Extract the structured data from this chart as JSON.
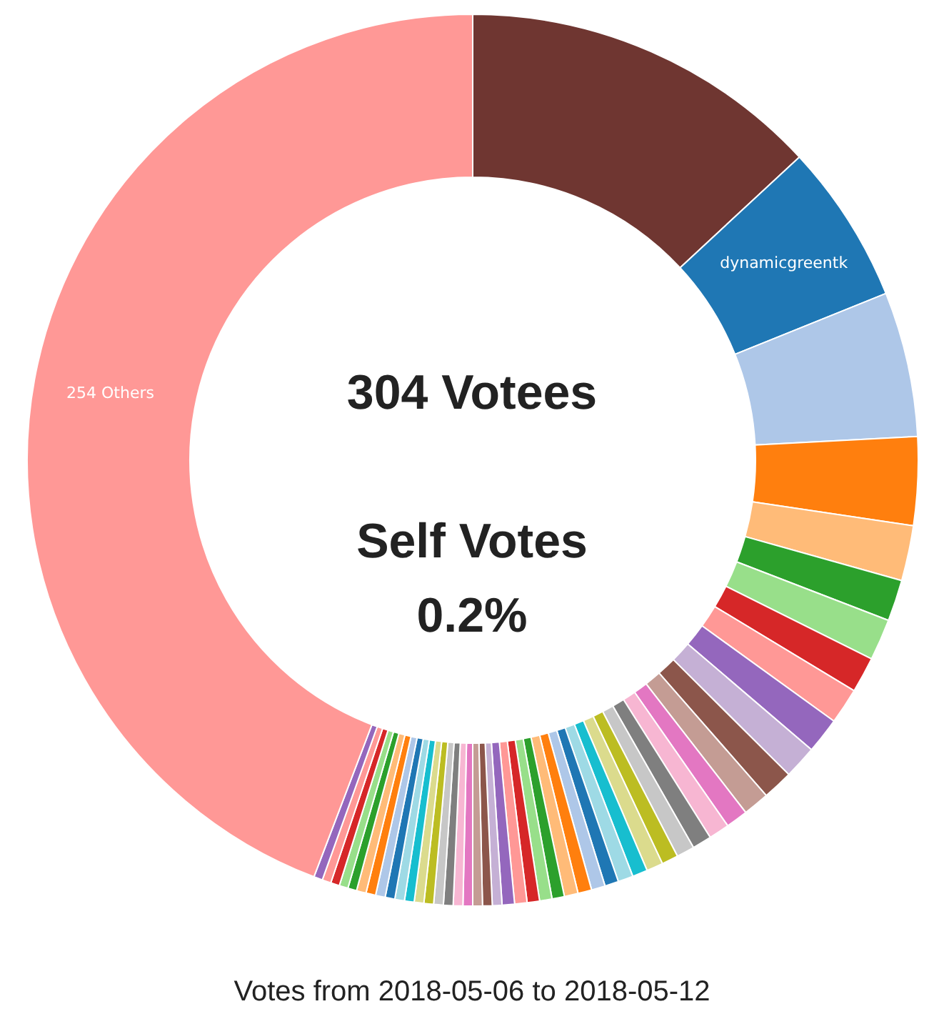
{
  "chart_data": {
    "type": "donut",
    "title": "Votes from 2018-05-06 to 2018-05-12",
    "annotations": [
      "304 Votees",
      "Self Votes",
      "0.2%"
    ],
    "categories": [
      null,
      "dynamicgreentk",
      null,
      null,
      null,
      null,
      null,
      null,
      null,
      null,
      null,
      null,
      null,
      null,
      null,
      null,
      null,
      null,
      null,
      null,
      null,
      null,
      null,
      null,
      null,
      null,
      null,
      null,
      null,
      null,
      null,
      null,
      null,
      null,
      null,
      null,
      null,
      null,
      null,
      null,
      null,
      null,
      null,
      null,
      null,
      null,
      null,
      null,
      null,
      null,
      "254 Others"
    ],
    "values": [
      13.1,
      5.8,
      5.25,
      3.2,
      2.0,
      1.5,
      1.5,
      1.3,
      1.3,
      1.3,
      1.2,
      1.1,
      0.95,
      0.8,
      0.75,
      0.7,
      0.65,
      0.6,
      0.6,
      0.55,
      0.55,
      0.5,
      0.5,
      0.5,
      0.5,
      0.45,
      0.45,
      0.45,
      0.45,
      0.45,
      0.35,
      0.35,
      0.35,
      0.35,
      0.35,
      0.35,
      0.35,
      0.35,
      0.35,
      0.35,
      0.35,
      0.35,
      0.35,
      0.35,
      0.35,
      0.32,
      0.32,
      0.32,
      0.32,
      0.32,
      44.2
    ],
    "colors": [
      "#6f3631",
      "#1f77b4",
      "#aec7e8",
      "#ff7f0e",
      "#ffbb78",
      "#2ca02c",
      "#98df8a",
      "#d62728",
      "#ff9896",
      "#9467bd",
      "#c5b0d5",
      "#8c564b",
      "#c49c94",
      "#e377c2",
      "#f7b6d2",
      "#7f7f7f",
      "#c7c7c7",
      "#bcbd22",
      "#dbdb8d",
      "#17becf",
      "#9edae5",
      "#1f77b4",
      "#aec7e8",
      "#ff7f0e",
      "#ffbb78",
      "#2ca02c",
      "#98df8a",
      "#d62728",
      "#ff9896",
      "#9467bd",
      "#c5b0d5",
      "#8c564b",
      "#c49c94",
      "#e377c2",
      "#f7b6d2",
      "#7f7f7f",
      "#c7c7c7",
      "#bcbd22",
      "#dbdb8d",
      "#17becf",
      "#9edae5",
      "#1f77b4",
      "#aec7e8",
      "#ff7f0e",
      "#ffbb78",
      "#2ca02c",
      "#98df8a",
      "#d62728",
      "#ff9896",
      "#9467bd",
      "#ff9896"
    ],
    "legend": false
  }
}
